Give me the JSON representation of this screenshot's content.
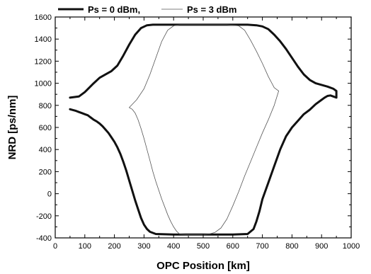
{
  "chart_data": {
    "type": "line",
    "xlabel": "OPC Position [km]",
    "ylabel": "NRD [ps/nm]",
    "xlim": [
      0,
      1000
    ],
    "ylim": [
      -400,
      1600
    ],
    "xticks": [
      "0",
      "100",
      "200",
      "300",
      "400",
      "500",
      "600",
      "700",
      "800",
      "900",
      "1000"
    ],
    "yticks": [
      "-400",
      "-200",
      "0",
      "200",
      "400",
      "600",
      "800",
      "1000",
      "1200",
      "1400",
      "1600"
    ],
    "legend_position": "top-left",
    "grid": false,
    "series": [
      {
        "name": "Ps = 0 dBm,",
        "style": "thick",
        "color": "#111111",
        "x": [
          50,
          80,
          100,
          130,
          150,
          170,
          190,
          210,
          230,
          250,
          270,
          290,
          310,
          330,
          400,
          500,
          600,
          650,
          680,
          700,
          720,
          740,
          760,
          780,
          800,
          820,
          840,
          860,
          880,
          900,
          920,
          940,
          950,
          950,
          940,
          930,
          920,
          910,
          900,
          880,
          860,
          840,
          820,
          800,
          780,
          760,
          740,
          720,
          700,
          690,
          680,
          670,
          650,
          600,
          500,
          400,
          340,
          320,
          310,
          300,
          290,
          280,
          270,
          260,
          250,
          240,
          230,
          220,
          210,
          200,
          190,
          180,
          170,
          160,
          150,
          140,
          130,
          120,
          110,
          100,
          90,
          80,
          70,
          60,
          50
        ],
        "y": [
          870,
          880,
          920,
          1000,
          1050,
          1080,
          1110,
          1160,
          1250,
          1350,
          1440,
          1500,
          1525,
          1530,
          1530,
          1530,
          1530,
          1530,
          1525,
          1515,
          1490,
          1440,
          1380,
          1310,
          1230,
          1150,
          1080,
          1030,
          1000,
          985,
          970,
          950,
          930,
          870,
          880,
          890,
          885,
          870,
          850,
          810,
          760,
          720,
          660,
          600,
          520,
          400,
          250,
          100,
          -50,
          -160,
          -250,
          -320,
          -365,
          -370,
          -370,
          -370,
          -365,
          -345,
          -320,
          -280,
          -220,
          -140,
          -60,
          30,
          120,
          210,
          290,
          360,
          420,
          470,
          510,
          550,
          580,
          610,
          635,
          655,
          670,
          690,
          710,
          720,
          730,
          740,
          750,
          758,
          765
        ]
      },
      {
        "name": "Ps = 3 dBm",
        "style": "thin",
        "color": "#555555",
        "x": [
          250,
          275,
          300,
          320,
          340,
          360,
          380,
          400,
          420,
          440,
          500,
          580,
          620,
          640,
          660,
          680,
          700,
          720,
          740,
          755,
          740,
          720,
          700,
          680,
          660,
          640,
          620,
          600,
          580,
          560,
          540,
          520,
          500,
          440,
          420,
          410,
          400,
          390,
          380,
          370,
          360,
          350,
          340,
          330,
          320,
          310,
          300,
          290,
          280,
          270,
          260,
          250
        ],
        "y": [
          780,
          850,
          950,
          1080,
          1230,
          1380,
          1480,
          1520,
          1530,
          1530,
          1530,
          1530,
          1520,
          1480,
          1390,
          1290,
          1180,
          1060,
          960,
          930,
          800,
          670,
          550,
          420,
          290,
          160,
          20,
          -110,
          -230,
          -310,
          -350,
          -365,
          -370,
          -370,
          -365,
          -340,
          -300,
          -250,
          -190,
          -120,
          -50,
          30,
          110,
          200,
          300,
          400,
          500,
          590,
          670,
          730,
          765,
          780
        ]
      }
    ]
  }
}
